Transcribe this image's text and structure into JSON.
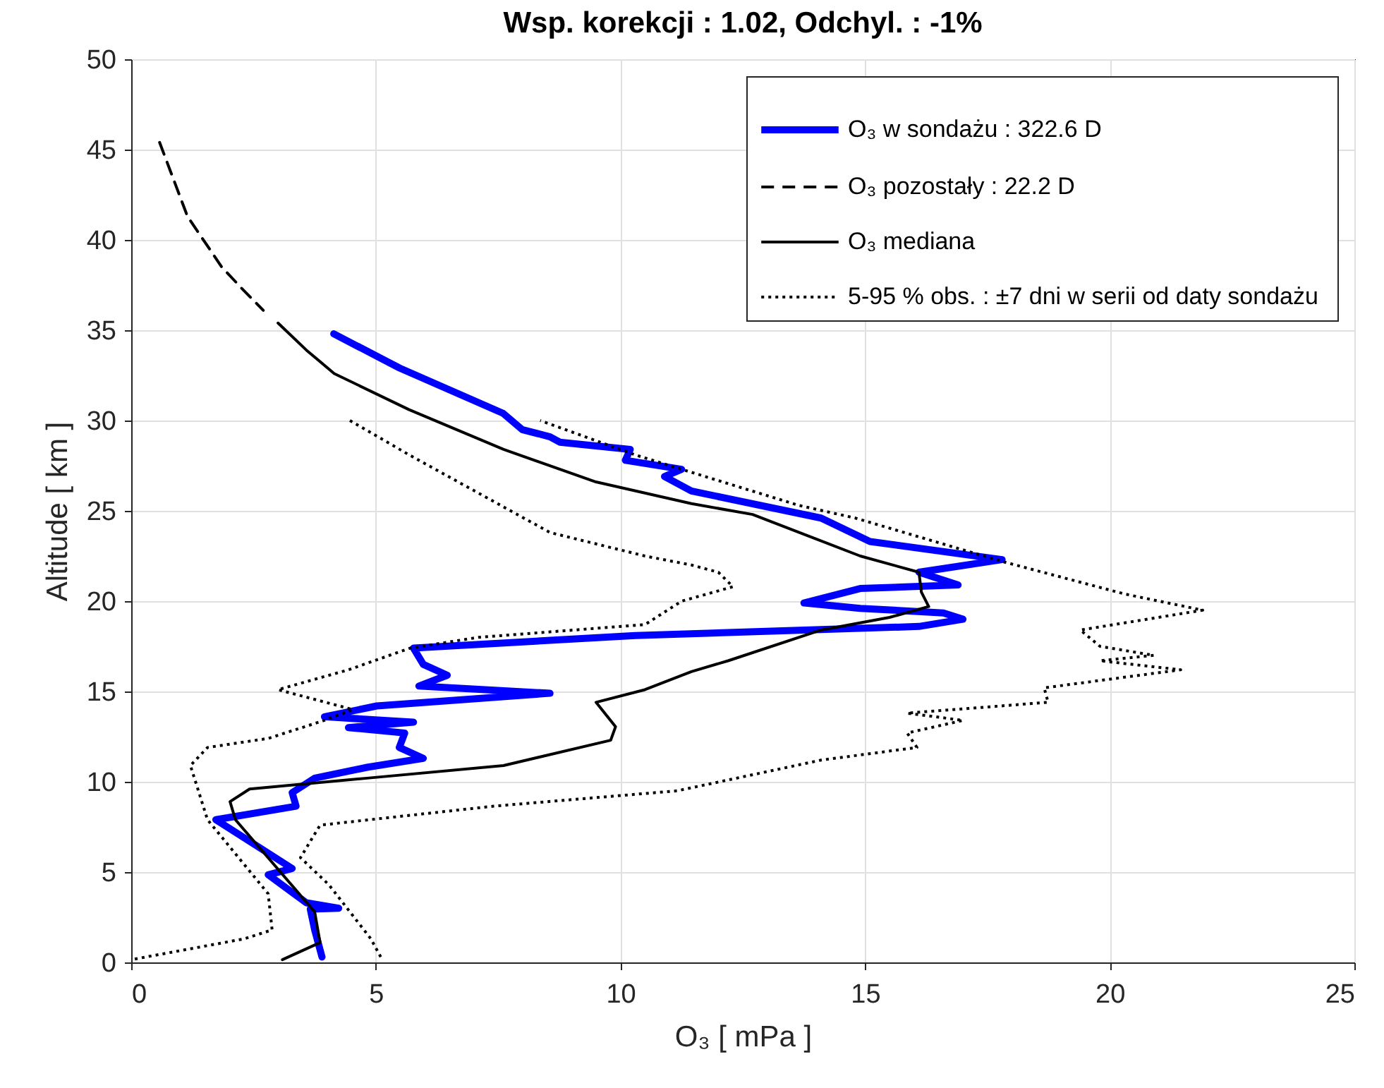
{
  "chart_data": {
    "type": "line",
    "title": "Wsp. korekcji : 1.02,     Odchyl. : -1%",
    "xlabel": "O₃ [ mPa ]",
    "ylabel": "Altitude [ km ]",
    "xlim": [
      0,
      25
    ],
    "xticks": [
      0,
      5,
      10,
      15,
      20,
      25
    ],
    "ylim": [
      0,
      50
    ],
    "yticks": [
      0,
      5,
      10,
      15,
      20,
      25,
      30,
      35,
      40,
      45,
      50
    ],
    "grid": true,
    "legend": "top right",
    "series": [
      {
        "name": "O₃ w sondażu :  322.6 D",
        "color": "#0000ff",
        "line_style": "solid",
        "x": [
          4.14,
          5.49,
          7.6,
          7.99,
          8.56,
          8.76,
          10.2,
          10.1,
          11.25,
          10.9,
          11.45,
          14.1,
          15.1,
          17.8,
          16.1,
          16.9,
          14.9,
          13.75,
          14.9,
          16.6,
          17.0,
          16.1,
          10.3,
          5.77,
          5.97,
          6.46,
          5.88,
          8.56,
          5.02,
          3.95,
          5.77,
          4.44,
          5.59,
          5.48,
          5.97,
          4.82,
          3.75,
          3.29,
          3.37,
          1.73,
          3.29,
          2.8,
          3.58,
          4.24,
          3.66,
          3.75,
          3.9
        ],
        "values": [
          34.8,
          32.9,
          30.4,
          29.5,
          29.1,
          28.8,
          28.4,
          27.8,
          27.3,
          26.9,
          26.1,
          24.6,
          23.3,
          22.3,
          21.6,
          20.9,
          20.7,
          19.9,
          19.6,
          19.35,
          19.0,
          18.6,
          18.1,
          17.4,
          16.5,
          15.9,
          15.3,
          14.9,
          14.2,
          13.6,
          13.3,
          13.0,
          12.7,
          11.9,
          11.3,
          10.8,
          10.2,
          9.4,
          8.65,
          7.9,
          5.2,
          4.85,
          3.3,
          3.0,
          2.95,
          1.8,
          0.3
        ]
      },
      {
        "name": "O₃  pozostały :    22.2 D",
        "color": "#000000",
        "line_style": "dashed",
        "x": [
          0.58,
          1.15,
          1.85,
          2.3,
          2.7
        ],
        "values": [
          45.4,
          41.3,
          38.5,
          37.2,
          36.1
        ]
      },
      {
        "name": "O₃ mediana",
        "color": "#000000",
        "line_style": "solid",
        "x": [
          3.0,
          3.58,
          4.15,
          5.68,
          7.61,
          9.5,
          11.45,
          12.7,
          14.9,
          16.1,
          16.15,
          16.3,
          15.5,
          14.1,
          12.2,
          11.45,
          10.5,
          9.5,
          9.9,
          9.8,
          7.61,
          4.82,
          2.42,
          2.02,
          2.13,
          3.75,
          3.86,
          3.09
        ],
        "values": [
          35.4,
          33.9,
          32.6,
          30.6,
          28.4,
          26.6,
          25.4,
          24.8,
          22.5,
          21.6,
          20.5,
          19.7,
          19.1,
          18.4,
          16.7,
          16.1,
          15.1,
          14.4,
          13.05,
          12.3,
          10.9,
          10.2,
          9.6,
          8.9,
          7.9,
          2.8,
          1.1,
          0.15
        ]
      },
      {
        "name": "5-95 % obs. : ±7 dni w  serii od daty sondażu",
        "color": "#000000",
        "line_style": "dotted",
        "x": [
          4.47,
          5.68,
          8.56,
          10.5,
          11.45,
          12.0,
          12.3,
          11.25,
          10.5,
          7.1,
          5.7,
          4.44,
          3.0,
          4.53,
          3.95,
          2.8,
          1.56,
          1.21,
          1.56,
          2.8,
          2.88,
          2.3,
          0.0
        ],
        "values": [
          30.0,
          28.1,
          23.8,
          22.5,
          22.0,
          21.6,
          20.8,
          20.0,
          18.7,
          18.0,
          17.4,
          16.2,
          15.1,
          14.0,
          13.4,
          12.4,
          11.9,
          10.9,
          7.9,
          3.8,
          1.8,
          1.3,
          0.15
        ]
      },
      {
        "color": "#000000",
        "line_style": "dotted",
        "x": [
          5.1,
          4.9,
          4.04,
          3.46,
          3.86,
          7.41,
          11.16,
          14.1,
          16.06,
          15.86,
          17.0,
          15.86,
          18.74,
          18.66,
          21.45,
          19.8,
          20.9,
          19.8,
          19.4,
          21.9,
          20.3,
          17.8,
          14.8,
          13.65,
          11.25,
          10.3,
          8.36
        ],
        "values": [
          0.3,
          1.3,
          4.3,
          5.8,
          7.6,
          8.65,
          9.5,
          11.2,
          11.9,
          12.7,
          13.4,
          13.8,
          14.4,
          15.2,
          16.2,
          16.7,
          17.0,
          17.5,
          18.4,
          19.5,
          20.4,
          22.2,
          24.6,
          25.3,
          27.3,
          28.1,
          30.0
        ]
      }
    ]
  }
}
